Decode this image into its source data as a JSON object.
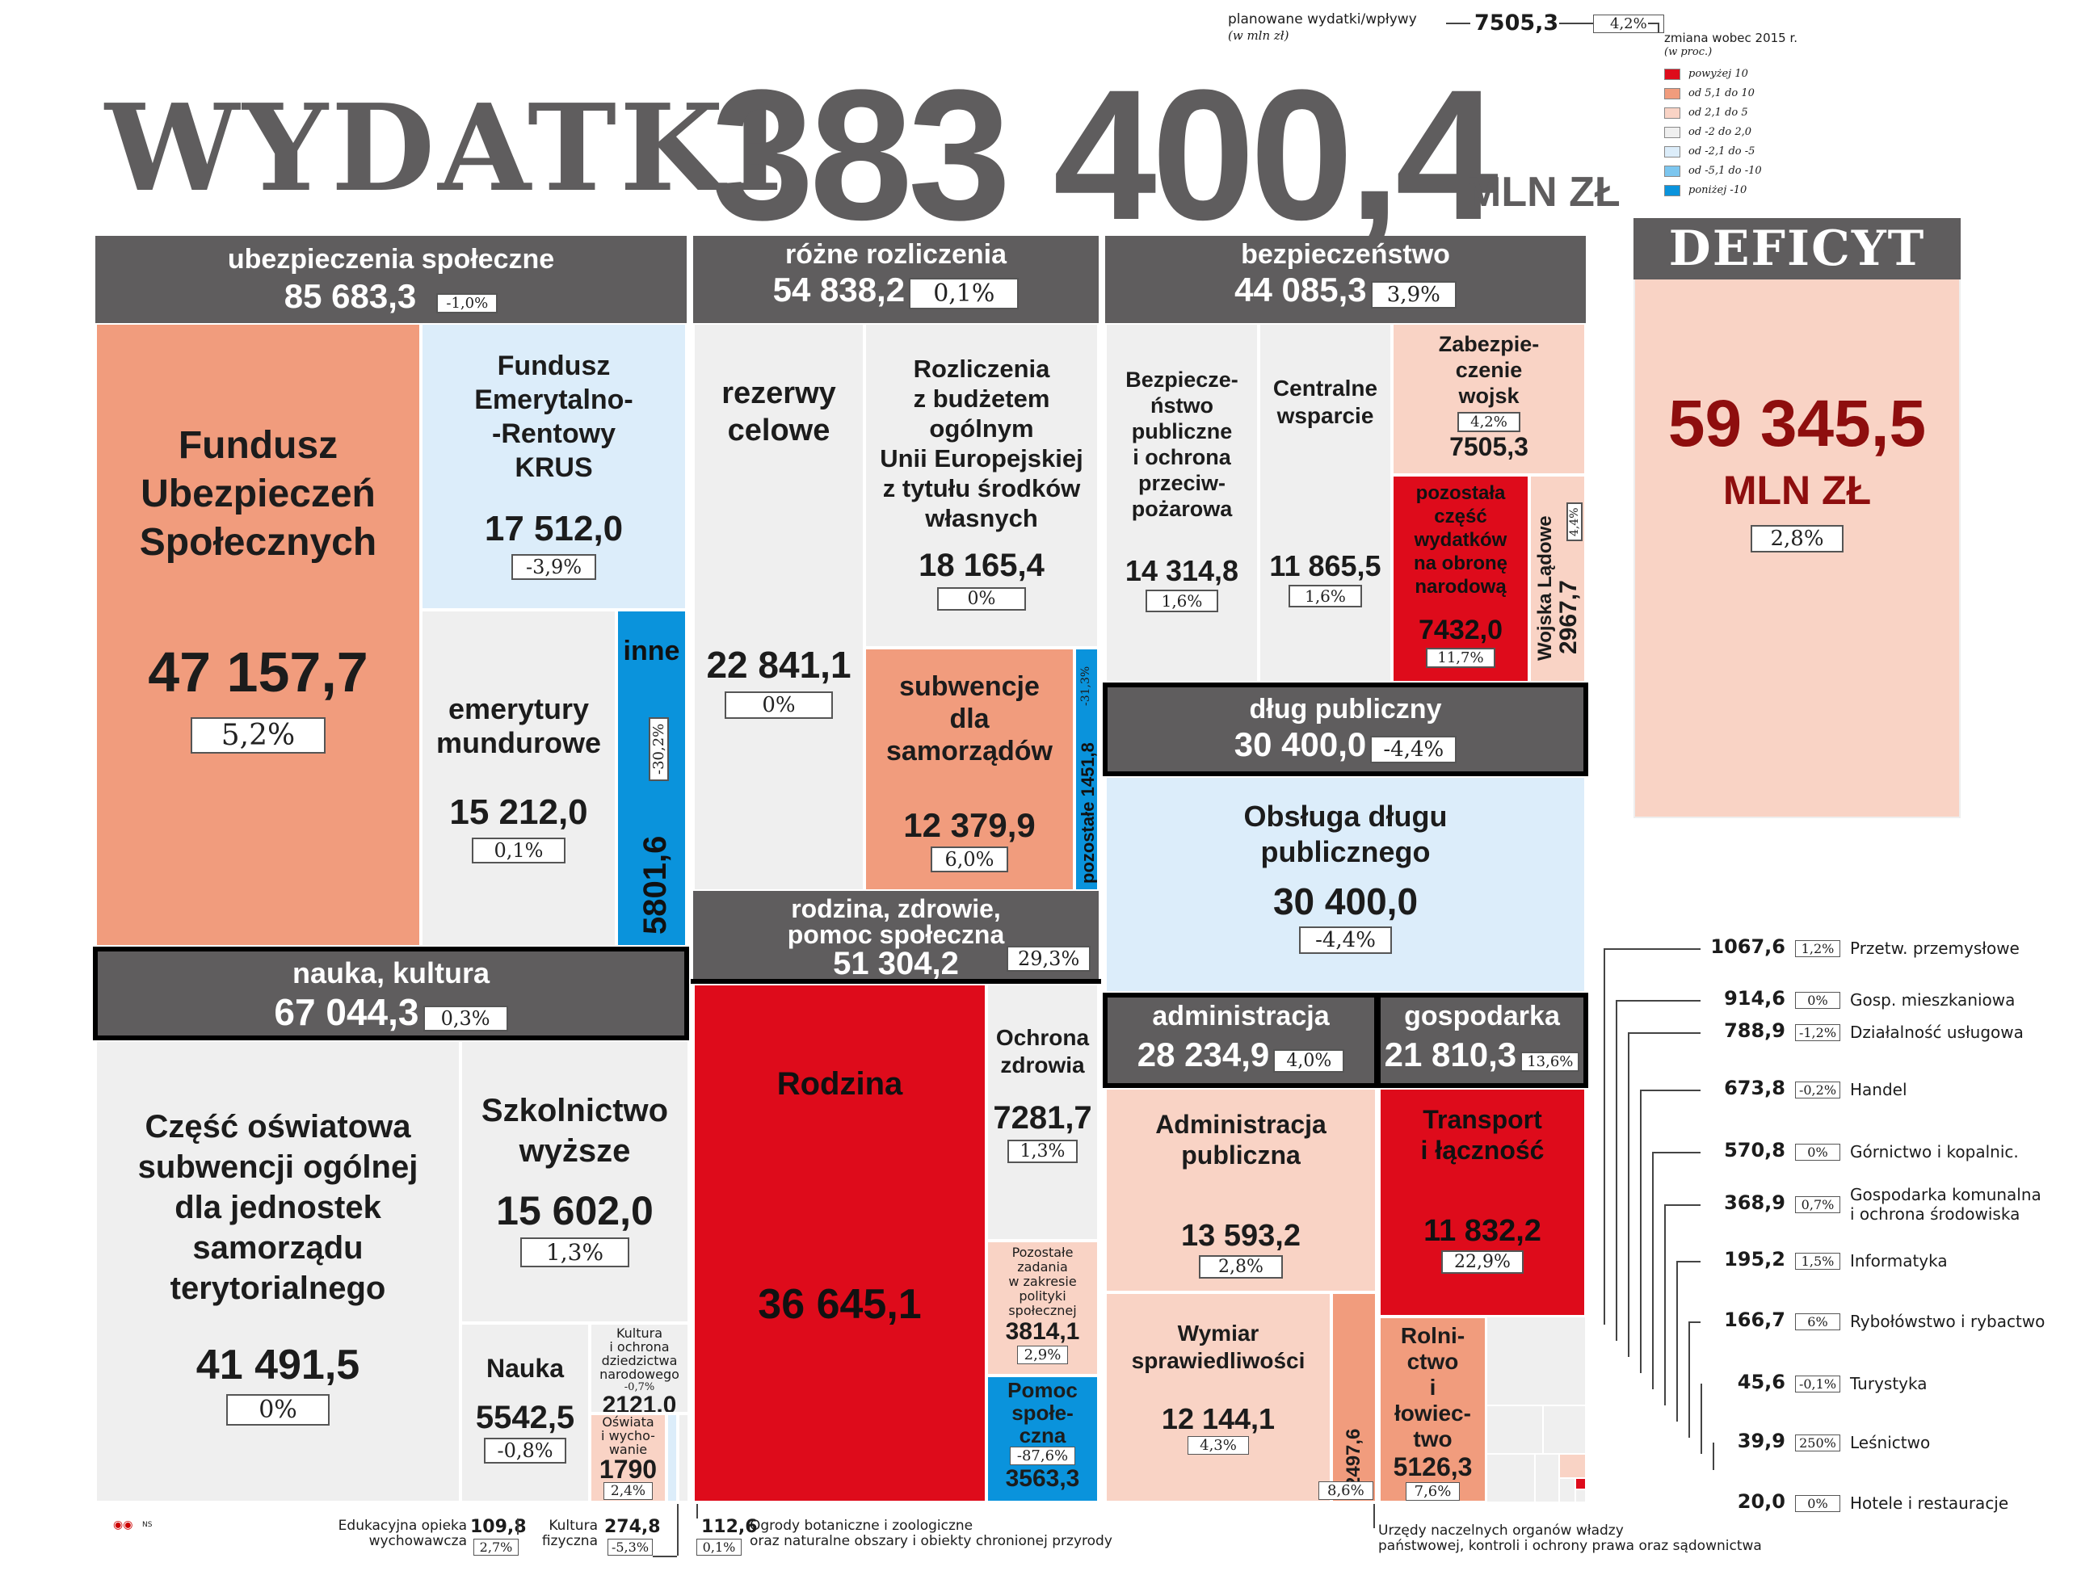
{
  "title": {
    "word": "WYDATKI",
    "value": "383 400,4",
    "unit": "MLN ZŁ"
  },
  "legend": {
    "planned_label_1": "planowane wydatki/wpływy",
    "planned_label_2": "(w mln zł)",
    "example_value": "7505,3",
    "example_pct": "4,2%",
    "change_label_1": "zmiana wobec 2015 r.",
    "change_label_2": "(w proc.)",
    "items": [
      {
        "label": "powyżej 10",
        "color": "#de0b1b"
      },
      {
        "label": "od 5,1 do 10",
        "color": "#f19c7d"
      },
      {
        "label": "od 2,1 do 5",
        "color": "#f9d3c5"
      },
      {
        "label": "od -2 do 2,0",
        "color": "#efefef"
      },
      {
        "label": "od -2,1 do -5",
        "color": "#dcedfa"
      },
      {
        "label": "od -5,1 do -10",
        "color": "#7cc6ef"
      },
      {
        "label": "poniżej -10",
        "color": "#0a93dc"
      }
    ]
  },
  "deficit": {
    "title": "DEFICYT",
    "value": "59 345,5",
    "unit": "MLN ZŁ",
    "pct": "2,8%"
  },
  "chart_data": {
    "type": "treemap",
    "groups": [
      {
        "name": "ubezpieczenia społeczne",
        "value": "85 683,3",
        "pct": "-1,0%",
        "items": [
          {
            "name": "Fundusz Ubezpieczeń Społecznych",
            "value": "47 157,7",
            "pct": "5,2%"
          },
          {
            "name": "Fundusz Emerytalno--Rentowy KRUS",
            "value": "17 512,0",
            "pct": "-3,9%"
          },
          {
            "name": "emerytury mundurowe",
            "value": "15 212,0",
            "pct": "0,1%"
          },
          {
            "name": "inne",
            "value": "5801,6",
            "pct": "-30,2%"
          }
        ]
      },
      {
        "name": "różne rozliczenia",
        "value": "54 838,2",
        "pct": "0,1%",
        "items": [
          {
            "name": "rezerwy celowe",
            "value": "22 841,1",
            "pct": "0%"
          },
          {
            "name": "Rozliczenia z budżetem ogólnym Unii Europejskiej z tytułu środków własnych",
            "value": "18 165,4",
            "pct": "0%"
          },
          {
            "name": "subwencje dla samorządów",
            "value": "12 379,9",
            "pct": "6,0%"
          },
          {
            "name": "pozostałe",
            "value": "1451,8",
            "pct": "-31,3%"
          }
        ]
      },
      {
        "name": "bezpieczeństwo",
        "value": "44 085,3",
        "pct": "3,9%",
        "items": [
          {
            "name": "Bezpieczeństwo publiczne i ochrona przeciwpożarowa",
            "value": "14 314,8",
            "pct": "1,6%"
          },
          {
            "name": "Centralne wsparcie",
            "value": "11 865,5",
            "pct": "1,6%"
          },
          {
            "name": "Zabezpieczenie wojsk",
            "value": "7505,3",
            "pct": "4,2%"
          },
          {
            "name": "pozostała część wydatków na obronę narodową",
            "value": "7432,0",
            "pct": "11,7%"
          },
          {
            "name": "Wojska Lądowe",
            "value": "2967,7",
            "pct": "4,4%"
          }
        ]
      },
      {
        "name": "dług publiczny",
        "value": "30 400,0",
        "pct": "-4,4%",
        "items": [
          {
            "name": "Obsługa długu publicznego",
            "value": "30 400,0",
            "pct": "-4,4%"
          }
        ]
      },
      {
        "name": "nauka, kultura",
        "value": "67 044,3",
        "pct": "0,3%",
        "items": [
          {
            "name": "Część oświatowa subwencji ogólnej dla jednostek samorządu terytorialnego",
            "value": "41 491,5",
            "pct": "0%"
          },
          {
            "name": "Szkolnictwo wyższe",
            "value": "15 602,0",
            "pct": "1,3%"
          },
          {
            "name": "Nauka",
            "value": "5542,5",
            "pct": "-0,8%"
          },
          {
            "name": "Kultura i ochrona dziedzictwa narodowego",
            "value": "2121,0",
            "pct": "-0,7%"
          },
          {
            "name": "Oświata i wychowanie",
            "value": "1790",
            "pct": "2,4%"
          },
          {
            "name": "Edukacyjna opieka wychowawcza",
            "value": "109,8",
            "pct": "2,7%"
          },
          {
            "name": "Kultura fizyczna",
            "value": "274,8",
            "pct": "-5,3%"
          }
        ]
      },
      {
        "name": "rodzina, zdrowie, pomoc społeczna",
        "value": "51 304,2",
        "pct": "29,3%",
        "items": [
          {
            "name": "Rodzina",
            "value": "36 645,1",
            "pct": ""
          },
          {
            "name": "Ochrona zdrowia",
            "value": "7281,7",
            "pct": "1,3%"
          },
          {
            "name": "Pozostałe zadania w zakresie polityki społecznej",
            "value": "3814,1",
            "pct": "2,9%"
          },
          {
            "name": "Pomoc społeczna",
            "value": "3563,3",
            "pct": "-87,6%"
          }
        ]
      },
      {
        "name": "administracja",
        "value": "28 234,9",
        "pct": "4,0%",
        "items": [
          {
            "name": "Administracja publiczna",
            "value": "13 593,2",
            "pct": "2,8%"
          },
          {
            "name": "Wymiar sprawiedliwości",
            "value": "12 144,1",
            "pct": "4,3%"
          },
          {
            "name": "Urzędy naczelnych organów władzy państwowej, kontroli i ochrony prawa oraz sądownictwa",
            "value": "2497,6",
            "pct": "8,6%"
          }
        ]
      },
      {
        "name": "gospodarka",
        "value": "21 810,3",
        "pct": "13,6%",
        "items": [
          {
            "name": "Transport i łączność",
            "value": "11 832,2",
            "pct": "22,9%"
          },
          {
            "name": "Rolnictwo i łowiectwo",
            "value": "5126,3",
            "pct": "7,6%"
          },
          {
            "name": "Przetw. przemysłowe",
            "value": "1067,6",
            "pct": "1,2%"
          },
          {
            "name": "Gosp. mieszkaniowa",
            "value": "914,6",
            "pct": "0%"
          },
          {
            "name": "Działalność usługowa",
            "value": "788,9",
            "pct": "-1,2%"
          },
          {
            "name": "Handel",
            "value": "673,8",
            "pct": "-0,2%"
          },
          {
            "name": "Górnictwo i kopalnic.",
            "value": "570,8",
            "pct": "0%"
          },
          {
            "name": "Gospodarka komunalna i ochrona środowiska",
            "value": "368,9",
            "pct": "0,7%"
          },
          {
            "name": "Informatyka",
            "value": "195,2",
            "pct": "1,5%"
          },
          {
            "name": "Rybołówstwo i rybactwo",
            "value": "166,7",
            "pct": "6%"
          },
          {
            "name": "Turystyka",
            "value": "45,6",
            "pct": "-0,1%"
          },
          {
            "name": "Leśnictwo",
            "value": "39,9",
            "pct": "250%"
          },
          {
            "name": "Hotele i restauracje",
            "value": "20,0",
            "pct": "0%"
          }
        ]
      }
    ],
    "ogrody": {
      "name": "Ogrody botaniczne i zoologiczne oraz naturalne obszary i obiekty chronionej przyrody",
      "value": "112,6",
      "pct": "0,1%"
    }
  },
  "text": {
    "fus_1": "Fundusz",
    "fus_2": "Ubezpieczeń",
    "fus_3": "Społecznych",
    "krus_1": "Fundusz",
    "krus_2": "Emerytalno-",
    "krus_3": "-Rentowy",
    "krus_4": "KRUS",
    "mund_1": "emerytury",
    "mund_2": "mundurowe",
    "rez_1": "rezerwy",
    "rez_2": "celowe",
    "ue_1": "Rozliczenia",
    "ue_2": "z budżetem",
    "ue_3": "ogólnym",
    "ue_4": "Unii Europejskiej",
    "ue_5": "z tytułu środków",
    "ue_6": "własnych",
    "sub_1": "subwencje",
    "sub_2": "dla",
    "sub_3": "samorządów",
    "bp_1": "Bezpiecze-",
    "bp_2": "ństwo",
    "bp_3": "publiczne",
    "bp_4": "i ochrona",
    "bp_5": "przeciw-",
    "bp_6": "pożarowa",
    "cw_1": "Centralne",
    "cw_2": "wsparcie",
    "zw_1": "Zabezpie-",
    "zw_2": "czenie",
    "zw_3": "wojsk",
    "pc_1": "pozostała",
    "pc_2": "część",
    "pc_3": "wydatków",
    "pc_4": "na obronę",
    "pc_5": "narodową",
    "odp_1": "Obsługa długu",
    "odp_2": "publicznego",
    "rz_h1": "rodzina, zdrowie,",
    "rz_h2": "pomoc społeczna",
    "osw_1": "Część oświatowa",
    "osw_2": "subwencji ogólnej",
    "osw_3": "dla jednostek",
    "osw_4": "samorządu",
    "osw_5": "terytorialnego",
    "szk_1": "Szkolnictwo",
    "szk_2": "wyższe",
    "kult_1": "Kultura",
    "kult_2": "i ochrona",
    "kult_3": "dziedzictwa",
    "kult_4": "narodowego",
    "ow_1": "Oświata",
    "ow_2": "i wycho-",
    "ow_3": "wanie",
    "oz_1": "Ochrona",
    "oz_2": "zdrowia",
    "pz_1": "Pozostałe",
    "pz_2": "zadania",
    "pz_3": "w zakresie",
    "pz_4": "polityki",
    "pz_5": "społecznej",
    "ps_1": "Pomoc",
    "ps_2": "społe-",
    "ps_3": "czna",
    "ap_1": "Administracja",
    "ap_2": "publiczna",
    "ws_1": "Wymiar",
    "ws_2": "sprawiedliwości",
    "tl_1": "Transport",
    "tl_2": "i łączność",
    "rl_1": "Rolni-",
    "rl_2": "ctwo",
    "rl_3": "i",
    "rl_4": "łowiec-",
    "rl_5": "two",
    "eow_1": "Edukacyjna opieka",
    "eow_2": "wychowawcza",
    "kf_1": "Kultura",
    "kf_2": "fizyczna",
    "og_1": "Ogrody botaniczne i zoologiczne",
    "og_2": "oraz naturalne obszary i obiekty chronionej przyrody",
    "urz_1": "Urzędy naczelnych organów władzy",
    "urz_2": "państwowej, kontroli i ochrony prawa oraz sądownictwa",
    "gk_1": "Gospodarka komunalna",
    "gk_2": "i ochrona środowiska",
    "credit": "NS"
  }
}
